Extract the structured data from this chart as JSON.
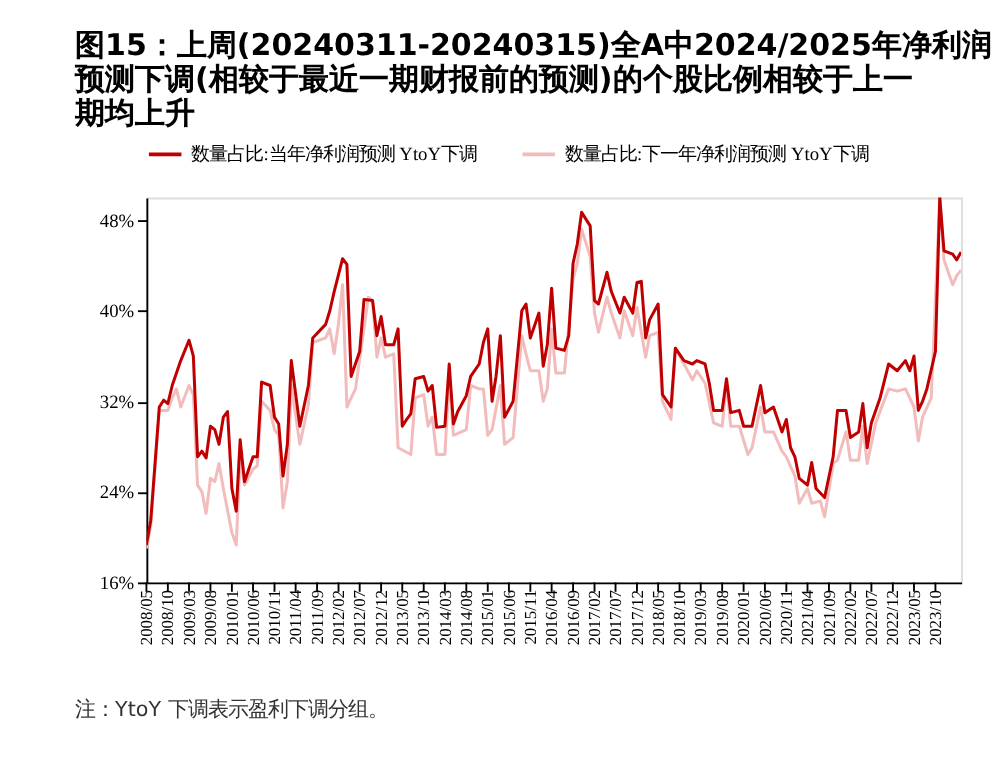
{
  "chart_data": {
    "type": "line",
    "title": "图15：上周(20240311-20240315)全A中2024/2025年净利润预测下调(相较于最近一期财报前的预测)的个股比例相较于上一期均上升",
    "annotations": [
      "注：YtoY 下调表示盈利下调分组。"
    ],
    "legend": "top",
    "grid": false,
    "ylim": [
      16,
      50
    ],
    "yticks": [
      {
        "value": 16,
        "label": "16%"
      },
      {
        "value": 24,
        "label": "24%"
      },
      {
        "value": 32,
        "label": "32%"
      },
      {
        "value": 40,
        "label": "40%"
      },
      {
        "value": 48,
        "label": "48%"
      }
    ],
    "xlim": [
      "2008-05",
      "2024-04"
    ],
    "xticks": [
      {
        "value": "2008-05",
        "label": "2008/05"
      },
      {
        "value": "2008-10",
        "label": "2008/10"
      },
      {
        "value": "2009-03",
        "label": "2009/03"
      },
      {
        "value": "2009-08",
        "label": "2009/08"
      },
      {
        "value": "2010-01",
        "label": "2010/01"
      },
      {
        "value": "2010-06",
        "label": "2010/06"
      },
      {
        "value": "2010-11",
        "label": "2010/11"
      },
      {
        "value": "2011-04",
        "label": "2011/04"
      },
      {
        "value": "2011-09",
        "label": "2011/09"
      },
      {
        "value": "2012-02",
        "label": "2012/02"
      },
      {
        "value": "2012-07",
        "label": "2012/07"
      },
      {
        "value": "2012-12",
        "label": "2012/12"
      },
      {
        "value": "2013-05",
        "label": "2013/05"
      },
      {
        "value": "2013-10",
        "label": "2013/10"
      },
      {
        "value": "2014-03",
        "label": "2014/03"
      },
      {
        "value": "2014-08",
        "label": "2014/08"
      },
      {
        "value": "2015-01",
        "label": "2015/01"
      },
      {
        "value": "2015-06",
        "label": "2015/06"
      },
      {
        "value": "2015-11",
        "label": "2015/11"
      },
      {
        "value": "2016-04",
        "label": "2016/04"
      },
      {
        "value": "2016-09",
        "label": "2016/09"
      },
      {
        "value": "2017-02",
        "label": "2017/02"
      },
      {
        "value": "2017-07",
        "label": "2017/07"
      },
      {
        "value": "2017-12",
        "label": "2017/12"
      },
      {
        "value": "2018-05",
        "label": "2018/05"
      },
      {
        "value": "2018-10",
        "label": "2018/10"
      },
      {
        "value": "2019-03",
        "label": "2019/03"
      },
      {
        "value": "2019-08",
        "label": "2019/08"
      },
      {
        "value": "2020-01",
        "label": "2020/01"
      },
      {
        "value": "2020-06",
        "label": "2020/06"
      },
      {
        "value": "2020-11",
        "label": "2020/11"
      },
      {
        "value": "2021-04",
        "label": "2021/04"
      },
      {
        "value": "2021-09",
        "label": "2021/09"
      },
      {
        "value": "2022-02",
        "label": "2022/02"
      },
      {
        "value": "2022-07",
        "label": "2022/07"
      },
      {
        "value": "2022-12",
        "label": "2022/12"
      },
      {
        "value": "2023-05",
        "label": "2023/05"
      },
      {
        "value": "2023-10",
        "label": "2023/10"
      }
    ],
    "series": [
      {
        "name": "数量占比:当年净利润预测 YtoY下调",
        "color": "#c00000",
        "x": [
          "2008-05",
          "2008-06",
          "2008-08",
          "2008-09",
          "2008-10",
          "2008-11",
          "2009-01",
          "2009-03",
          "2009-04",
          "2009-05",
          "2009-06",
          "2009-07",
          "2009-08",
          "2009-09",
          "2009-10",
          "2009-11",
          "2009-12",
          "2010-01",
          "2010-02",
          "2010-03",
          "2010-04",
          "2010-06",
          "2010-07",
          "2010-08",
          "2010-10",
          "2010-11",
          "2010-12",
          "2011-01",
          "2011-02",
          "2011-03",
          "2011-05",
          "2011-07",
          "2011-08",
          "2011-11",
          "2011-12",
          "2012-01",
          "2012-03",
          "2012-04",
          "2012-05",
          "2012-07",
          "2012-08",
          "2012-10",
          "2012-11",
          "2012-12",
          "2013-01",
          "2013-03",
          "2013-04",
          "2013-05",
          "2013-06",
          "2013-07",
          "2013-08",
          "2013-10",
          "2013-11",
          "2013-12",
          "2014-01",
          "2014-03",
          "2014-04",
          "2014-05",
          "2014-06",
          "2014-08",
          "2014-09",
          "2014-11",
          "2014-12",
          "2015-01",
          "2015-02",
          "2015-03",
          "2015-04",
          "2015-05",
          "2015-07",
          "2015-09",
          "2015-10",
          "2015-11",
          "2016-01",
          "2016-02",
          "2016-03",
          "2016-04",
          "2016-05",
          "2016-07",
          "2016-08",
          "2016-09",
          "2016-10",
          "2016-11",
          "2017-01",
          "2017-02",
          "2017-03",
          "2017-05",
          "2017-06",
          "2017-08",
          "2017-09",
          "2017-11",
          "2017-12",
          "2018-01",
          "2018-02",
          "2018-03",
          "2018-05",
          "2018-06",
          "2018-08",
          "2018-09",
          "2018-11",
          "2019-01",
          "2019-02",
          "2019-04",
          "2019-05",
          "2019-06",
          "2019-08",
          "2019-09",
          "2019-10",
          "2019-12",
          "2020-01",
          "2020-03",
          "2020-05",
          "2020-06",
          "2020-08",
          "2020-10",
          "2020-11",
          "2020-12",
          "2021-01",
          "2021-02",
          "2021-04",
          "2021-05",
          "2021-06",
          "2021-08",
          "2021-10",
          "2021-11",
          "2022-01",
          "2022-02",
          "2022-04",
          "2022-05",
          "2022-06",
          "2022-07",
          "2022-09",
          "2022-11",
          "2023-01",
          "2023-03",
          "2023-04",
          "2023-05",
          "2023-06",
          "2023-07",
          "2023-08",
          "2023-10",
          "2023-11",
          "2023-12",
          "2024-02",
          "2024-03",
          "2024-04"
        ],
        "values": [
          19.3,
          21.5,
          31.5,
          32.1,
          31.8,
          33.4,
          35.6,
          37.4,
          36.0,
          27.1,
          27.6,
          27.0,
          29.8,
          29.5,
          28.2,
          30.6,
          31.1,
          24.3,
          22.3,
          28.6,
          24.9,
          27.1,
          27.1,
          33.7,
          33.4,
          30.6,
          30.0,
          25.4,
          28.2,
          35.6,
          29.8,
          33.4,
          37.6,
          38.8,
          40.0,
          41.7,
          44.6,
          44.1,
          34.2,
          36.4,
          41.0,
          40.9,
          37.8,
          39.5,
          37.0,
          37.0,
          38.4,
          29.8,
          30.4,
          30.9,
          34.0,
          34.2,
          32.9,
          33.4,
          29.7,
          29.8,
          35.3,
          30.0,
          31.1,
          32.5,
          34.2,
          35.3,
          37.2,
          38.4,
          32.0,
          34.2,
          37.8,
          30.6,
          32.0,
          40.0,
          40.6,
          37.6,
          39.8,
          35.1,
          37.0,
          42.0,
          36.7,
          36.5,
          37.8,
          44.2,
          45.9,
          48.7,
          47.5,
          40.9,
          40.6,
          43.4,
          41.7,
          39.8,
          41.2,
          39.8,
          42.5,
          42.6,
          37.6,
          39.2,
          40.6,
          32.6,
          31.5,
          36.7,
          35.6,
          35.3,
          35.6,
          35.3,
          33.6,
          31.2,
          31.2,
          34.0,
          31.0,
          31.2,
          29.8,
          29.8,
          33.4,
          31.0,
          31.5,
          29.3,
          30.4,
          27.9,
          27.1,
          25.2,
          24.6,
          26.6,
          24.3,
          23.5,
          27.1,
          31.2,
          31.2,
          28.8,
          29.3,
          31.8,
          27.9,
          30.1,
          32.3,
          35.3,
          34.7,
          35.6,
          34.7,
          36.0,
          31.2,
          32.0,
          33.1,
          36.4,
          50.0,
          45.3,
          45.0,
          44.5,
          45.2
        ]
      },
      {
        "name": "数量占比:下一年净利润预测 YtoY下调",
        "color": "#f2bcbc",
        "x": [
          "2008-05",
          "2008-06",
          "2008-08",
          "2008-10",
          "2008-11",
          "2008-12",
          "2009-01",
          "2009-03",
          "2009-04",
          "2009-05",
          "2009-06",
          "2009-07",
          "2009-08",
          "2009-09",
          "2009-10",
          "2009-11",
          "2010-01",
          "2010-02",
          "2010-03",
          "2010-04",
          "2010-06",
          "2010-07",
          "2010-08",
          "2010-10",
          "2010-11",
          "2010-12",
          "2011-01",
          "2011-02",
          "2011-03",
          "2011-05",
          "2011-07",
          "2011-08",
          "2011-11",
          "2011-12",
          "2012-01",
          "2012-02",
          "2012-03",
          "2012-04",
          "2012-06",
          "2012-09",
          "2012-10",
          "2012-11",
          "2012-12",
          "2013-01",
          "2013-03",
          "2013-04",
          "2013-07",
          "2013-08",
          "2013-10",
          "2013-11",
          "2013-12",
          "2014-01",
          "2014-03",
          "2014-04",
          "2014-05",
          "2014-08",
          "2014-09",
          "2014-11",
          "2014-12",
          "2015-01",
          "2015-02",
          "2015-04",
          "2015-05",
          "2015-07",
          "2015-09",
          "2015-10",
          "2015-11",
          "2016-01",
          "2016-02",
          "2016-03",
          "2016-04",
          "2016-05",
          "2016-07",
          "2016-09",
          "2016-10",
          "2016-11",
          "2017-01",
          "2017-02",
          "2017-03",
          "2017-05",
          "2017-06",
          "2017-08",
          "2017-09",
          "2017-11",
          "2017-12",
          "2018-02",
          "2018-03",
          "2018-05",
          "2018-06",
          "2018-08",
          "2018-09",
          "2018-11",
          "2019-01",
          "2019-02",
          "2019-04",
          "2019-06",
          "2019-08",
          "2019-09",
          "2019-10",
          "2019-12",
          "2020-02",
          "2020-03",
          "2020-05",
          "2020-06",
          "2020-08",
          "2020-10",
          "2020-11",
          "2021-01",
          "2021-02",
          "2021-04",
          "2021-05",
          "2021-07",
          "2021-08",
          "2021-10",
          "2021-11",
          "2022-01",
          "2022-02",
          "2022-04",
          "2022-05",
          "2022-06",
          "2022-08",
          "2022-11",
          "2023-01",
          "2023-03",
          "2023-05",
          "2023-06",
          "2023-07",
          "2023-09",
          "2023-11",
          "2023-12",
          "2024-02",
          "2024-03",
          "2024-04"
        ],
        "values": [
          19.0,
          21.0,
          31.2,
          31.2,
          32.3,
          33.1,
          31.5,
          33.4,
          32.6,
          24.6,
          24.0,
          22.1,
          25.2,
          24.9,
          26.5,
          24.3,
          20.4,
          19.3,
          27.1,
          24.6,
          26.0,
          26.3,
          32.0,
          31.2,
          29.5,
          29.0,
          22.6,
          24.9,
          33.4,
          28.2,
          31.7,
          37.2,
          37.6,
          38.4,
          36.2,
          38.9,
          42.3,
          31.5,
          33.1,
          41.2,
          40.9,
          35.9,
          37.6,
          35.9,
          36.2,
          27.9,
          27.3,
          32.3,
          32.6,
          29.8,
          30.6,
          27.3,
          27.3,
          34.2,
          29.0,
          29.5,
          33.4,
          33.1,
          33.1,
          29.0,
          29.5,
          33.4,
          28.2,
          28.8,
          37.8,
          36.2,
          34.7,
          34.7,
          32.0,
          33.1,
          38.4,
          34.5,
          34.5,
          42.8,
          44.2,
          47.2,
          44.8,
          39.8,
          38.1,
          41.2,
          39.8,
          37.6,
          40.0,
          37.8,
          40.3,
          35.9,
          37.8,
          38.1,
          32.0,
          30.4,
          36.7,
          35.3,
          33.9,
          34.7,
          33.6,
          30.1,
          29.8,
          33.6,
          29.8,
          29.8,
          27.3,
          27.9,
          31.5,
          29.3,
          29.3,
          27.6,
          27.1,
          25.4,
          23.0,
          24.3,
          23.0,
          23.2,
          21.8,
          26.5,
          26.8,
          29.3,
          26.8,
          26.8,
          29.8,
          26.5,
          30.1,
          33.1,
          32.9,
          33.1,
          31.5,
          28.5,
          30.6,
          32.3,
          50.0,
          44.5,
          42.3,
          43.1,
          43.6
        ]
      }
    ]
  }
}
